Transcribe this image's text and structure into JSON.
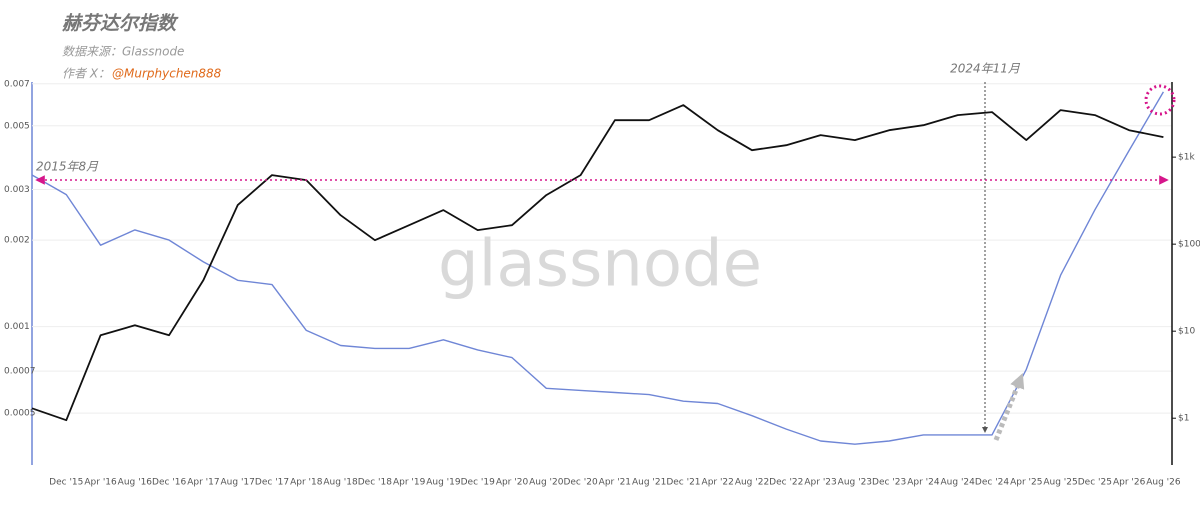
{
  "chart_data": {
    "type": "line",
    "title": "赫芬达尔指数",
    "source": "数据来源：Glassnode",
    "author_label": "作者 X：",
    "author_handle": "@Murphychen888",
    "watermark": "glassnode",
    "annotation_start": "2015年8月",
    "annotation_event": "2024年11月",
    "x": [
      "2015-08",
      "2015-12",
      "2016-04",
      "2016-08",
      "2016-12",
      "2017-04",
      "2017-08",
      "2017-12",
      "2018-04",
      "2018-08",
      "2018-12",
      "2019-04",
      "2019-08",
      "2019-12",
      "2020-04",
      "2020-08",
      "2020-12",
      "2021-04",
      "2021-08",
      "2021-12",
      "2022-04",
      "2022-08",
      "2022-12",
      "2023-04",
      "2023-08",
      "2023-12",
      "2024-04",
      "2024-08",
      "2024-12",
      "2025-04",
      "2025-08",
      "2025-12",
      "2026-04",
      "2026-08"
    ],
    "xlim": [
      "2015-08",
      "2026-09"
    ],
    "xticks": [
      {
        "value": "2015-12",
        "label": "Dec '15"
      },
      {
        "value": "2016-04",
        "label": "Apr '16"
      },
      {
        "value": "2016-08",
        "label": "Aug '16"
      },
      {
        "value": "2016-12",
        "label": "Dec '16"
      },
      {
        "value": "2017-04",
        "label": "Apr '17"
      },
      {
        "value": "2017-08",
        "label": "Aug '17"
      },
      {
        "value": "2017-12",
        "label": "Dec '17"
      },
      {
        "value": "2018-04",
        "label": "Apr '18"
      },
      {
        "value": "2018-08",
        "label": "Aug '18"
      },
      {
        "value": "2018-12",
        "label": "Dec '18"
      },
      {
        "value": "2019-04",
        "label": "Apr '19"
      },
      {
        "value": "2019-08",
        "label": "Aug '19"
      },
      {
        "value": "2019-12",
        "label": "Dec '19"
      },
      {
        "value": "2020-04",
        "label": "Apr '20"
      },
      {
        "value": "2020-08",
        "label": "Aug '20"
      },
      {
        "value": "2020-12",
        "label": "Dec '20"
      },
      {
        "value": "2021-04",
        "label": "Apr '21"
      },
      {
        "value": "2021-08",
        "label": "Aug '21"
      },
      {
        "value": "2021-12",
        "label": "Dec '21"
      },
      {
        "value": "2022-04",
        "label": "Apr '22"
      },
      {
        "value": "2022-08",
        "label": "Aug '22"
      },
      {
        "value": "2022-12",
        "label": "Dec '22"
      },
      {
        "value": "2023-04",
        "label": "Apr '23"
      },
      {
        "value": "2023-08",
        "label": "Aug '23"
      },
      {
        "value": "2023-12",
        "label": "Dec '23"
      },
      {
        "value": "2024-04",
        "label": "Apr '24"
      },
      {
        "value": "2024-08",
        "label": "Aug '24"
      },
      {
        "value": "2024-12",
        "label": "Dec '24"
      },
      {
        "value": "2025-04",
        "label": "Apr '25"
      },
      {
        "value": "2025-08",
        "label": "Aug '25"
      },
      {
        "value": "2025-12",
        "label": "Dec '25"
      },
      {
        "value": "2026-04",
        "label": "Apr '26"
      },
      {
        "value": "2026-08",
        "label": "Aug '26"
      }
    ],
    "ylog": true,
    "ylim": [
      0.00033,
      0.0071
    ],
    "yticks": [
      0.0005,
      0.0007,
      0.001,
      0.002,
      0.003,
      0.005,
      0.007
    ],
    "y2log": true,
    "y2lim": [
      0.29,
      7300
    ],
    "y2ticks": [
      {
        "value": 1,
        "label": "$1"
      },
      {
        "value": 10,
        "label": "$10"
      },
      {
        "value": 100,
        "label": "$100"
      },
      {
        "value": 1000,
        "label": "$1k"
      }
    ],
    "grid": true,
    "series": [
      {
        "color": "#6f86d6",
        "values": [
          0.00337,
          0.00288,
          0.00192,
          0.00217,
          0.002,
          0.00168,
          0.00145,
          0.0014,
          0.00097,
          0.00086,
          0.00084,
          0.00084,
          0.0009,
          0.00083,
          0.00078,
          0.00061,
          0.0006,
          0.00059,
          0.00058,
          0.00055,
          0.00054,
          0.00049,
          0.00044,
          0.0004,
          0.00039,
          0.0004,
          0.00042,
          0.00042,
          0.00042,
          0.00071,
          0.00151,
          0.00255,
          0.0041,
          0.00656
        ]
      },
      {
        "color": "#111111",
        "axis": "y2",
        "values": [
          1.3,
          0.95,
          9.0,
          11.7,
          9.0,
          38.6,
          281,
          621,
          545,
          215,
          111,
          165,
          246,
          145,
          165,
          366,
          621,
          2660,
          2660,
          3960,
          2040,
          1200,
          1370,
          1790,
          1570,
          2040,
          2330,
          3040,
          3290,
          1570,
          3470,
          3040,
          2040,
          1700
        ]
      }
    ]
  }
}
